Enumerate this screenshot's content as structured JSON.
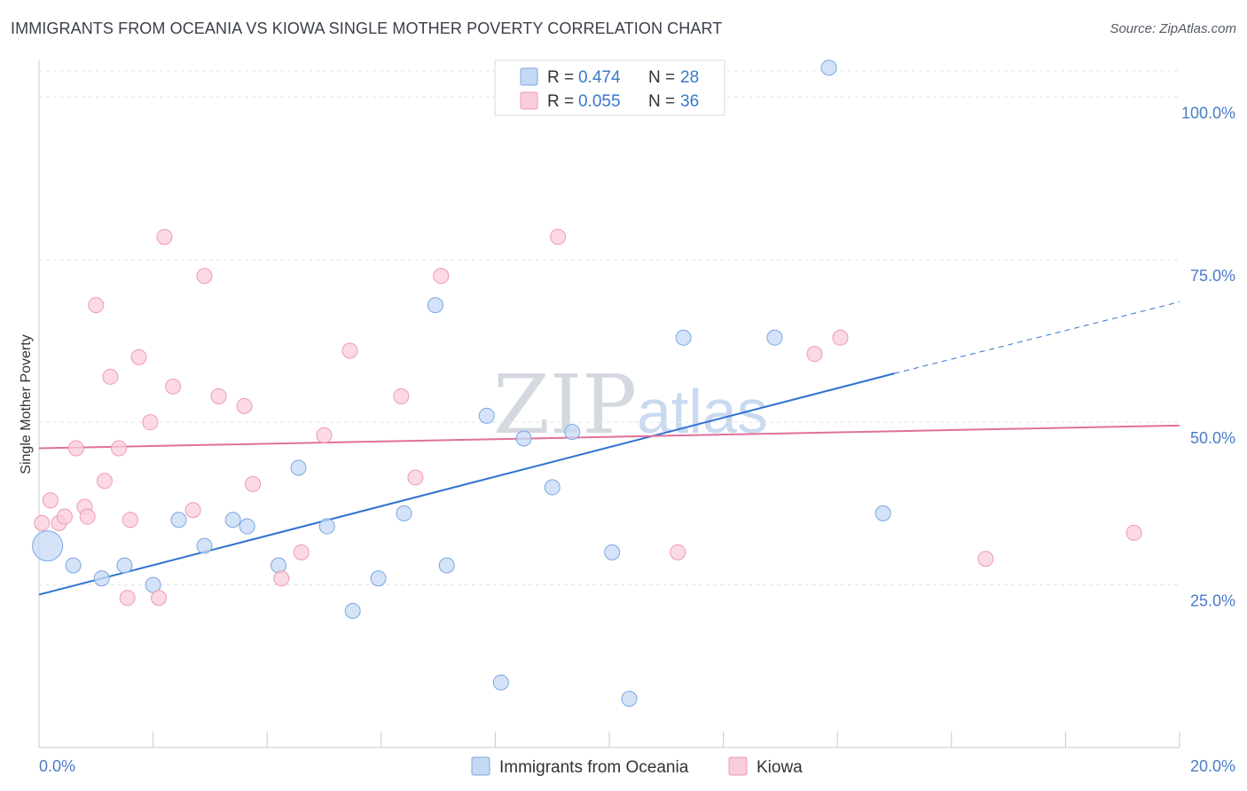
{
  "title": "IMMIGRANTS FROM OCEANIA VS KIOWA SINGLE MOTHER POVERTY CORRELATION CHART",
  "source": "Source: ZipAtlas.com",
  "colors": {
    "blue_fill": "#c5d9f5",
    "blue_stroke": "#7ba7e0",
    "blue_line": "#2f72d1",
    "pink_fill": "#f9cdd9",
    "pink_stroke": "#ef9ab4",
    "pink_line": "#e0709a",
    "tick_text": "#4a7cc7",
    "grid": "#dfe3e8"
  },
  "chart_data": {
    "type": "scatter",
    "title": "IMMIGRANTS FROM OCEANIA VS KIOWA SINGLE MOTHER POVERTY CORRELATION CHART",
    "xlabel": "",
    "ylabel": "Single Mother Poverty",
    "xlim": [
      0,
      20
    ],
    "ylim": [
      0,
      100
    ],
    "x_tick_labels": [
      "0.0%",
      "20.0%"
    ],
    "y_ticks": [
      25,
      50,
      75,
      100
    ],
    "y_tick_labels": [
      "25.0%",
      "50.0%",
      "75.0%",
      "100.0%"
    ],
    "grid": true,
    "legend_position": "top-center",
    "legend": [
      {
        "series": "Immigrants from Oceania",
        "r_label": "R =",
        "r_value": "0.474",
        "n_label": "N =",
        "n_value": "28"
      },
      {
        "series": "Kiowa",
        "r_label": "R =",
        "r_value": "0.055",
        "n_label": "N =",
        "n_value": "36"
      }
    ],
    "series": [
      {
        "name": "Immigrants from Oceania",
        "color": "blue",
        "points": [
          {
            "x": 0.15,
            "y": 31,
            "big": true
          },
          {
            "x": 0.6,
            "y": 28
          },
          {
            "x": 1.1,
            "y": 26
          },
          {
            "x": 1.5,
            "y": 28
          },
          {
            "x": 2.0,
            "y": 25
          },
          {
            "x": 2.45,
            "y": 35
          },
          {
            "x": 2.9,
            "y": 31
          },
          {
            "x": 3.4,
            "y": 35
          },
          {
            "x": 3.65,
            "y": 34
          },
          {
            "x": 4.2,
            "y": 28
          },
          {
            "x": 4.55,
            "y": 43
          },
          {
            "x": 5.05,
            "y": 34
          },
          {
            "x": 5.5,
            "y": 21
          },
          {
            "x": 5.95,
            "y": 26
          },
          {
            "x": 6.4,
            "y": 36
          },
          {
            "x": 6.95,
            "y": 68
          },
          {
            "x": 7.15,
            "y": 28
          },
          {
            "x": 7.85,
            "y": 51
          },
          {
            "x": 8.1,
            "y": 10
          },
          {
            "x": 8.5,
            "y": 47.5
          },
          {
            "x": 9.0,
            "y": 40
          },
          {
            "x": 9.35,
            "y": 48.5
          },
          {
            "x": 10.05,
            "y": 30
          },
          {
            "x": 10.35,
            "y": 7.5
          },
          {
            "x": 11.3,
            "y": 63
          },
          {
            "x": 12.9,
            "y": 63
          },
          {
            "x": 13.85,
            "y": 104.5
          },
          {
            "x": 14.8,
            "y": 36
          }
        ]
      },
      {
        "name": "Kiowa",
        "color": "pink",
        "points": [
          {
            "x": 0.05,
            "y": 34.5
          },
          {
            "x": 0.2,
            "y": 38
          },
          {
            "x": 0.35,
            "y": 34.5
          },
          {
            "x": 0.45,
            "y": 35.5
          },
          {
            "x": 0.65,
            "y": 46
          },
          {
            "x": 0.8,
            "y": 37
          },
          {
            "x": 0.85,
            "y": 35.5
          },
          {
            "x": 1.0,
            "y": 68
          },
          {
            "x": 1.15,
            "y": 41
          },
          {
            "x": 1.25,
            "y": 57
          },
          {
            "x": 1.4,
            "y": 46
          },
          {
            "x": 1.55,
            "y": 23
          },
          {
            "x": 1.6,
            "y": 35
          },
          {
            "x": 1.75,
            "y": 60
          },
          {
            "x": 1.95,
            "y": 50
          },
          {
            "x": 2.1,
            "y": 23
          },
          {
            "x": 2.2,
            "y": 78.5
          },
          {
            "x": 2.35,
            "y": 55.5
          },
          {
            "x": 2.7,
            "y": 36.5
          },
          {
            "x": 2.9,
            "y": 72.5
          },
          {
            "x": 3.15,
            "y": 54
          },
          {
            "x": 3.6,
            "y": 52.5
          },
          {
            "x": 3.75,
            "y": 40.5
          },
          {
            "x": 4.25,
            "y": 26
          },
          {
            "x": 4.6,
            "y": 30
          },
          {
            "x": 5.0,
            "y": 48
          },
          {
            "x": 5.45,
            "y": 61
          },
          {
            "x": 6.35,
            "y": 54
          },
          {
            "x": 6.6,
            "y": 41.5
          },
          {
            "x": 7.05,
            "y": 72.5
          },
          {
            "x": 9.1,
            "y": 78.5
          },
          {
            "x": 11.2,
            "y": 30
          },
          {
            "x": 13.6,
            "y": 60.5
          },
          {
            "x": 14.05,
            "y": 63
          },
          {
            "x": 16.6,
            "y": 29
          },
          {
            "x": 19.2,
            "y": 33
          }
        ]
      }
    ],
    "trend_lines": [
      {
        "series": "Immigrants from Oceania",
        "x_start": 0,
        "y_start": 23.5,
        "x_solid_end": 15.0,
        "y_solid_end": 57.5,
        "x_dashed_end": 20.0,
        "y_dashed_end": 68.5
      },
      {
        "series": "Kiowa",
        "x_start": 0,
        "y_start": 46.0,
        "x_end": 20.0,
        "y_end": 49.5
      }
    ]
  },
  "watermark": {
    "zip": "ZIP",
    "atlas": "atlas"
  }
}
